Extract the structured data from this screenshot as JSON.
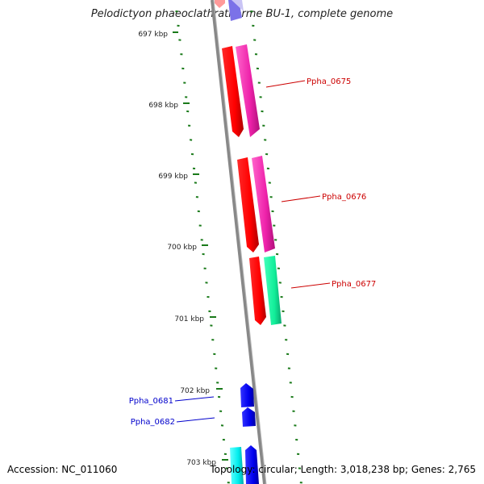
{
  "title": "Pelodictyon phaeoclathratiforme BU-1, complete genome",
  "footer": {
    "accession": "Accession: NC_011060",
    "info": "Topology: circular; Length: 3,018,238 bp; Genes: 2,765"
  },
  "colors": {
    "backbone": "#8a8a8a",
    "tick": "#1a7a1a",
    "label_red": "#cc0000",
    "label_blue": "#0000cc"
  },
  "kbp_labels": [
    "697 kbp",
    "698 kbp",
    "699 kbp",
    "700 kbp",
    "701 kbp",
    "702 kbp",
    "703 kbp"
  ],
  "genes": [
    {
      "label": "Ppha_0675",
      "color": "#cc0000"
    },
    {
      "label": "Ppha_0676",
      "color": "#cc0000"
    },
    {
      "label": "Ppha_0677",
      "color": "#cc0000"
    },
    {
      "label": "Ppha_0681",
      "color": "#0000cc"
    },
    {
      "label": "Ppha_0682",
      "color": "#0000cc"
    }
  ]
}
